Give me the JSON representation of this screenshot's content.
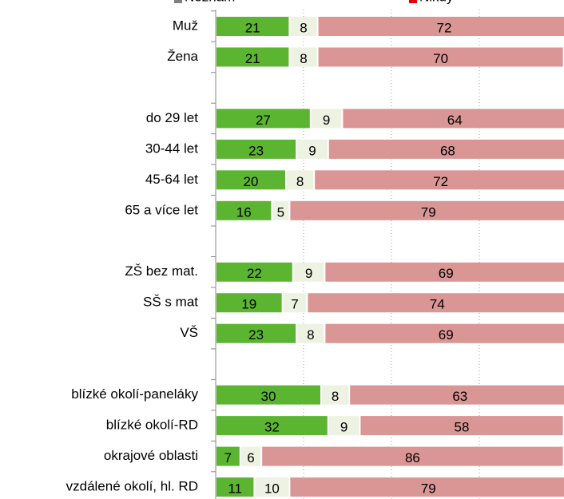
{
  "chart_data": {
    "type": "stacked_barh",
    "categories": [
      "Muž",
      "Žena",
      null,
      "do 29 let",
      "30-44 let",
      "45-64 let",
      "65 a více let",
      null,
      "ZŠ bez mat.",
      "SŠ s mat",
      "VŠ",
      null,
      "blízké okolí-paneláky",
      "blízké okolí-RD",
      "okrajové oblasti",
      "vzdálené okolí, hl. RD"
    ],
    "series": [
      {
        "color": "#5cb531",
        "values": [
          21,
          21,
          null,
          27,
          23,
          20,
          16,
          null,
          22,
          19,
          23,
          null,
          30,
          32,
          7,
          11
        ]
      },
      {
        "name": "Neznám",
        "color": "#edf2e2",
        "legend_color": "#7f7f7f",
        "values": [
          8,
          8,
          null,
          9,
          9,
          8,
          5,
          null,
          9,
          7,
          8,
          null,
          8,
          9,
          6,
          10
        ]
      },
      {
        "name": "Nikdy",
        "color": "#da9694",
        "legend_color": "#e00000",
        "values": [
          72,
          70,
          null,
          64,
          68,
          72,
          79,
          null,
          69,
          74,
          69,
          null,
          63,
          58,
          86,
          79
        ]
      }
    ],
    "xlim": [
      0,
      100
    ],
    "xticks": [
      25,
      50,
      75
    ],
    "grid": true
  }
}
